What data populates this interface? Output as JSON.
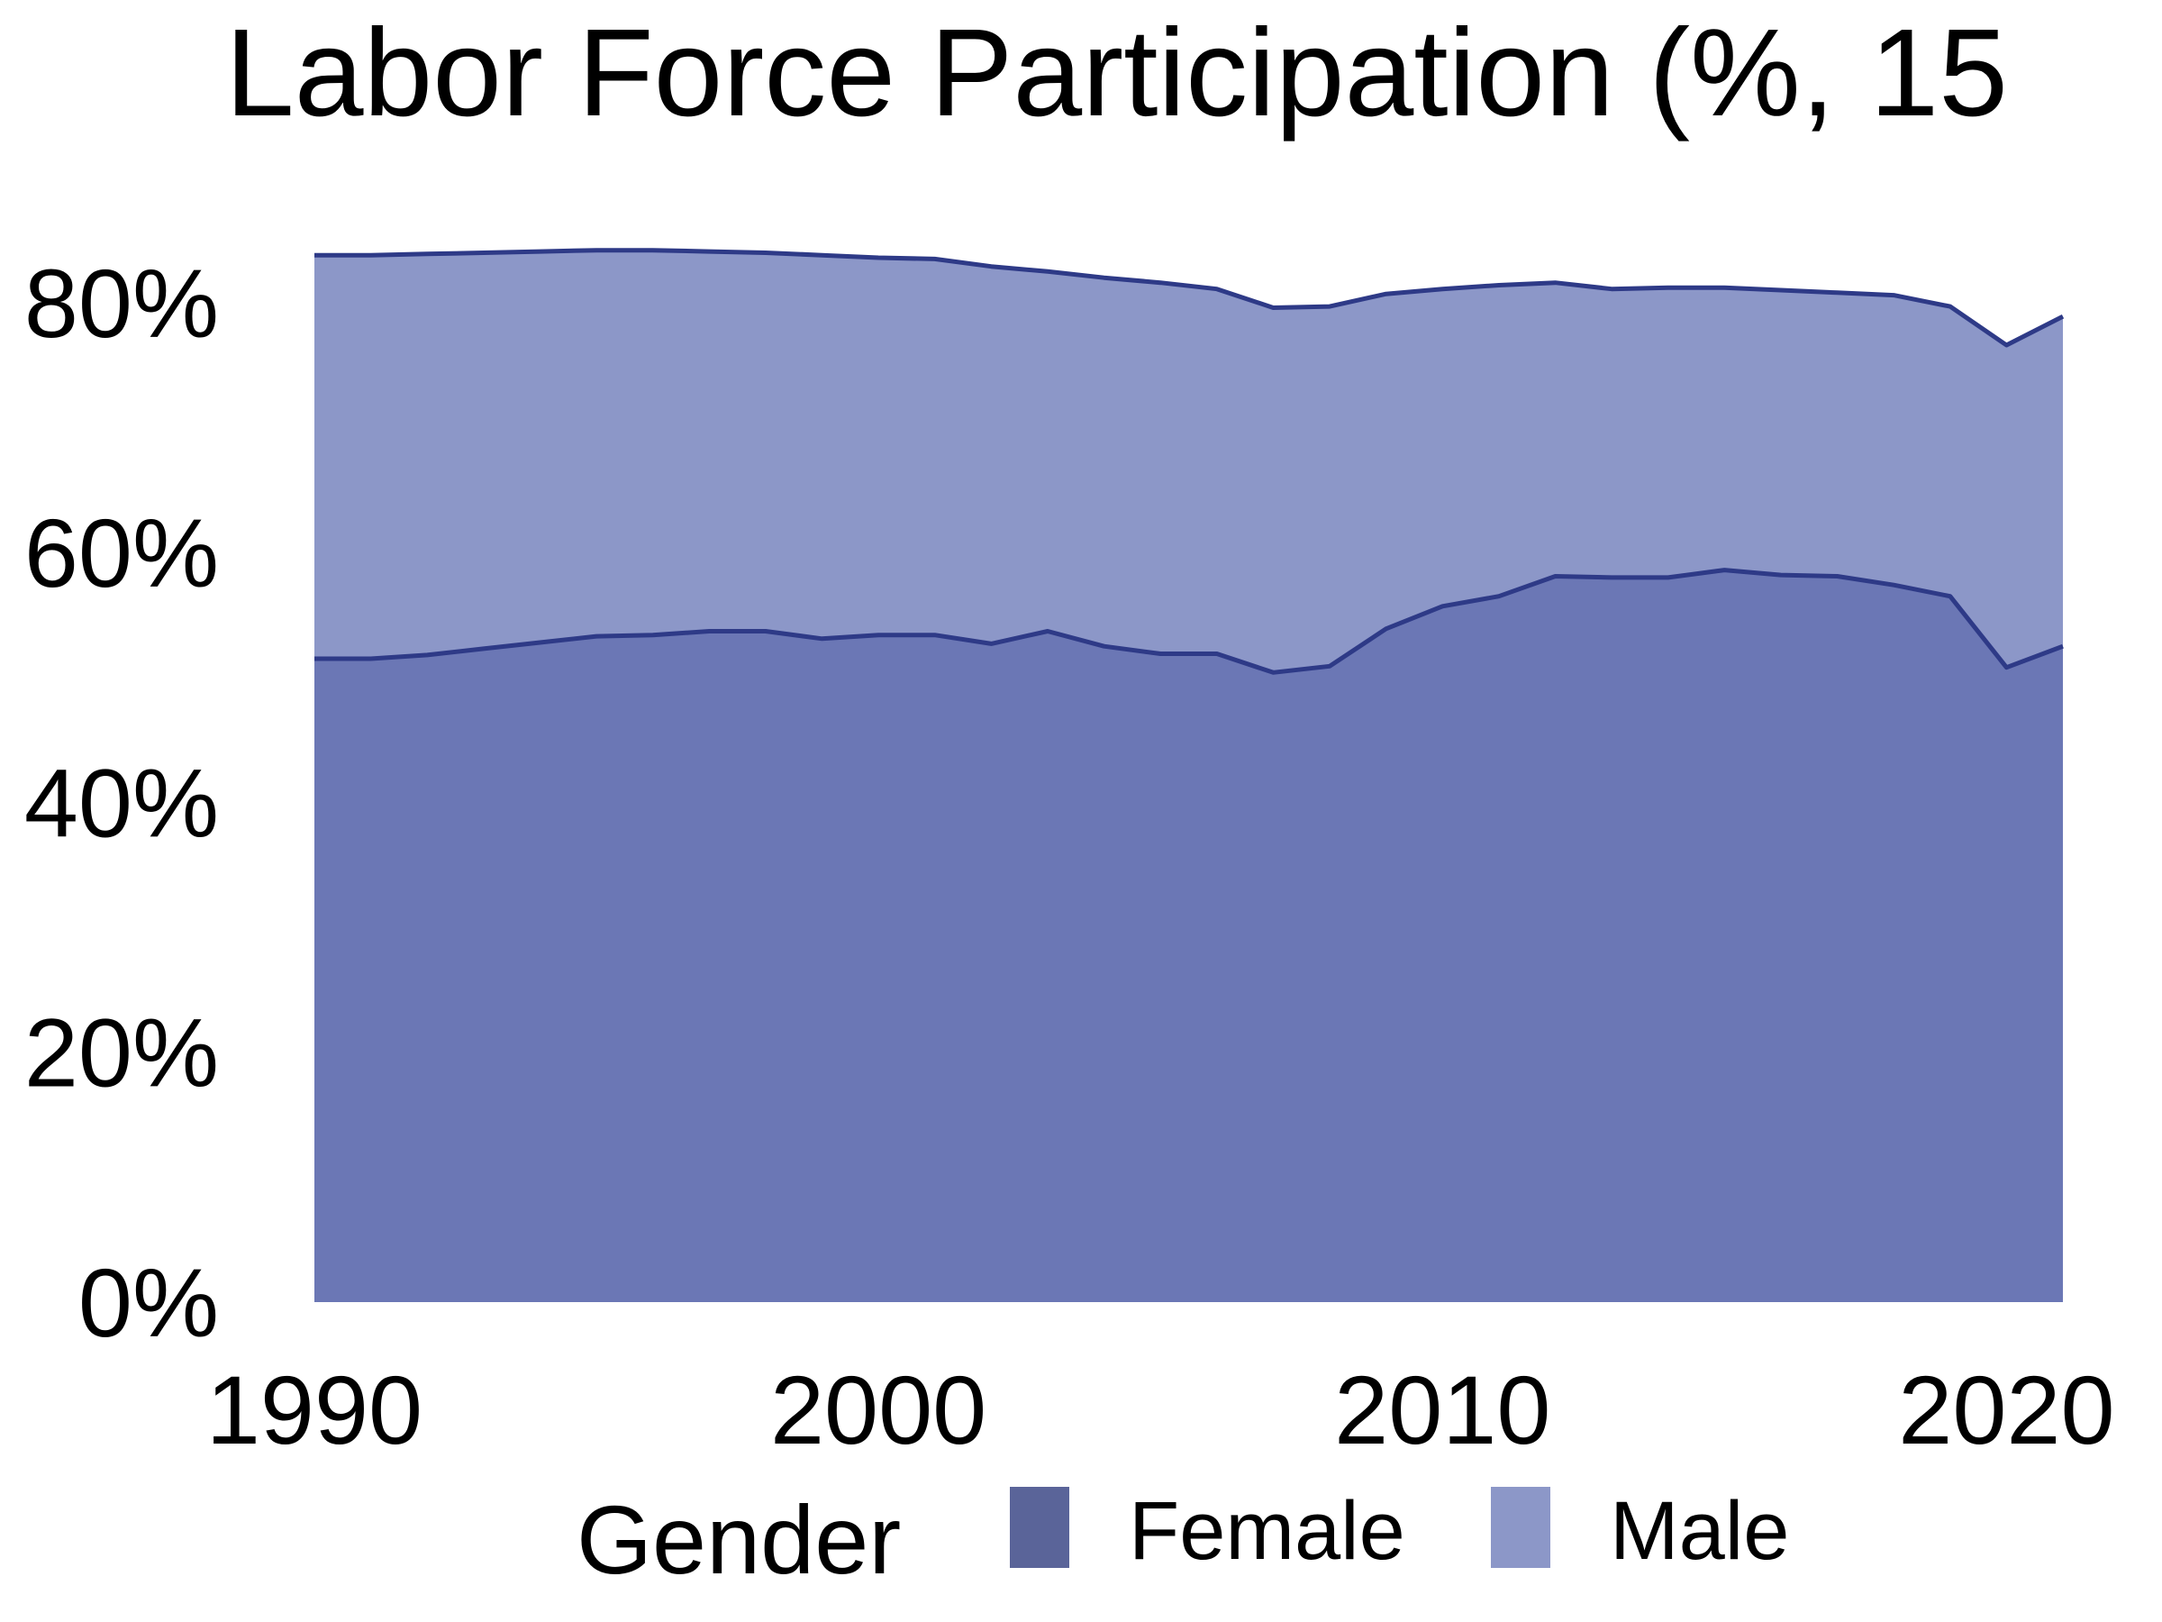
{
  "chart_data": {
    "type": "area",
    "stacked": true,
    "title": "Labor Force Participation (%, 15",
    "xlabel": "",
    "ylabel": "",
    "x": [
      1990,
      1991,
      1992,
      1993,
      1994,
      1995,
      1996,
      1997,
      1998,
      1999,
      2000,
      2001,
      2002,
      2003,
      2004,
      2005,
      2006,
      2007,
      2008,
      2009,
      2010,
      2011,
      2012,
      2013,
      2014,
      2015,
      2016,
      2017,
      2018,
      2019,
      2020,
      2021
    ],
    "series": [
      {
        "name": "Female",
        "values": [
          51.5,
          51.5,
          51.8,
          52.3,
          52.8,
          53.3,
          53.4,
          53.7,
          53.7,
          53.1,
          53.4,
          53.4,
          52.7,
          53.7,
          52.5,
          51.9,
          51.9,
          50.4,
          50.9,
          53.9,
          55.7,
          56.5,
          58.1,
          58.0,
          58.0,
          58.6,
          58.2,
          58.1,
          57.4,
          56.5,
          50.8,
          52.5
        ]
      },
      {
        "name": "Male",
        "values": [
          32.3,
          32.3,
          32.1,
          31.7,
          31.3,
          30.9,
          30.8,
          30.4,
          30.3,
          30.7,
          30.2,
          30.1,
          30.2,
          28.8,
          29.5,
          29.7,
          29.2,
          29.2,
          28.8,
          26.8,
          25.4,
          24.9,
          23.5,
          23.1,
          23.2,
          22.6,
          22.8,
          22.7,
          23.2,
          23.2,
          25.8,
          26.4
        ]
      }
    ],
    "xlim": [
      1990,
      2021
    ],
    "ylim": [
      0,
      88
    ],
    "xticks": [
      1990,
      2000,
      2010,
      2020
    ],
    "yticks": [
      0,
      20,
      40,
      60,
      80
    ],
    "ytick_labels": [
      "0%",
      "20%",
      "40%",
      "60%",
      "80%"
    ],
    "grid": false,
    "legend": {
      "title": "Gender",
      "position": "bottom",
      "entries": [
        "Female",
        "Male"
      ]
    }
  },
  "colors": {
    "female_fill": "#6b77b5",
    "male_fill": "#8c97c8",
    "line": "#2e3a87",
    "legend_female": "#5a6499",
    "legend_male": "#8c97c8",
    "text": "#000000",
    "background": "#ffffff"
  }
}
